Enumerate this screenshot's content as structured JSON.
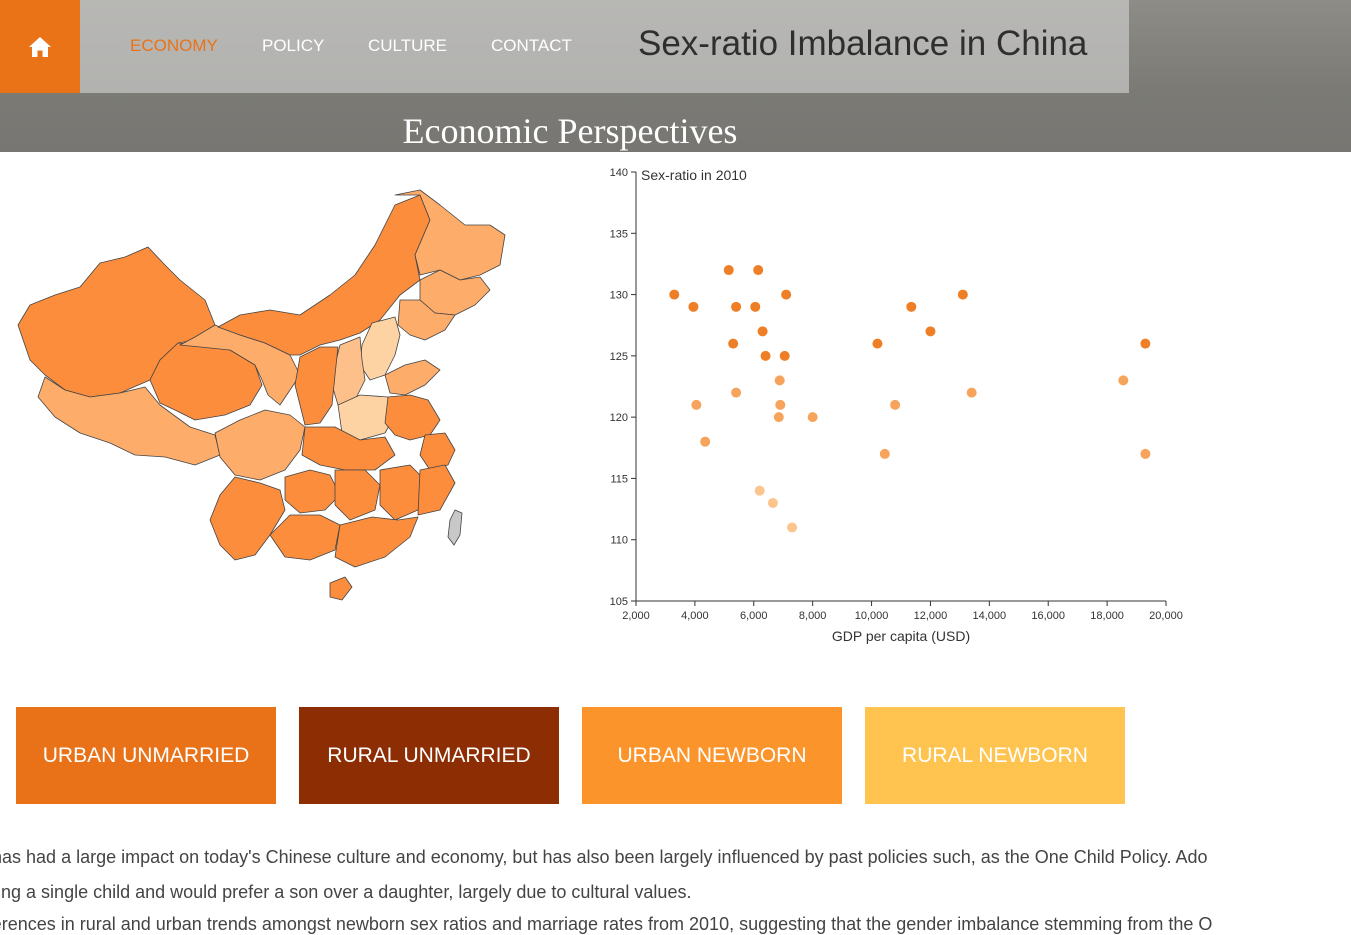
{
  "nav": {
    "home_icon": "home-icon",
    "items": [
      "ECONOMY",
      "POLICY",
      "CULTURE",
      "CONTACT"
    ],
    "active": "ECONOMY",
    "site_title": "Sex-ratio Imbalance in China"
  },
  "section_title": "Economic Perspectives",
  "map": {
    "description_color_high": "#f0822a",
    "description_color_low": "#fdd3a4",
    "taiwan_color": "#c8c8c8"
  },
  "chart_data": {
    "type": "scatter",
    "title": "Sex-ratio in 2010",
    "xlabel": "GDP per capita (USD)",
    "ylabel": "",
    "xlim": [
      2000,
      20000
    ],
    "ylim": [
      105,
      140
    ],
    "xticks": [
      "2,000",
      "4,000",
      "6,000",
      "8,000",
      "10,000",
      "12,000",
      "14,000",
      "16,000",
      "18,000",
      "20,000"
    ],
    "yticks": [
      "105",
      "110",
      "115",
      "120",
      "125",
      "130",
      "135",
      "140"
    ],
    "grid": false,
    "colors": {
      "dark": "#ef7f26",
      "mid": "#f6a45c",
      "light": "#fcc58e"
    },
    "points": [
      {
        "x": 3300,
        "y": 130,
        "tone": "dark"
      },
      {
        "x": 3950,
        "y": 129,
        "tone": "dark"
      },
      {
        "x": 4050,
        "y": 121,
        "tone": "mid"
      },
      {
        "x": 4350,
        "y": 118,
        "tone": "mid"
      },
      {
        "x": 5150,
        "y": 132,
        "tone": "dark"
      },
      {
        "x": 5300,
        "y": 126,
        "tone": "dark"
      },
      {
        "x": 5400,
        "y": 129,
        "tone": "dark"
      },
      {
        "x": 5400,
        "y": 122,
        "tone": "mid"
      },
      {
        "x": 6050,
        "y": 129,
        "tone": "dark"
      },
      {
        "x": 6150,
        "y": 132,
        "tone": "dark"
      },
      {
        "x": 6200,
        "y": 114,
        "tone": "light"
      },
      {
        "x": 6300,
        "y": 127,
        "tone": "dark"
      },
      {
        "x": 6400,
        "y": 125,
        "tone": "dark"
      },
      {
        "x": 6650,
        "y": 113,
        "tone": "light"
      },
      {
        "x": 6850,
        "y": 120,
        "tone": "mid"
      },
      {
        "x": 6880,
        "y": 123,
        "tone": "mid"
      },
      {
        "x": 6900,
        "y": 121,
        "tone": "mid"
      },
      {
        "x": 7050,
        "y": 125,
        "tone": "dark"
      },
      {
        "x": 7100,
        "y": 130,
        "tone": "dark"
      },
      {
        "x": 7300,
        "y": 111,
        "tone": "light"
      },
      {
        "x": 8000,
        "y": 120,
        "tone": "mid"
      },
      {
        "x": 10200,
        "y": 126,
        "tone": "dark"
      },
      {
        "x": 10450,
        "y": 117,
        "tone": "mid"
      },
      {
        "x": 10800,
        "y": 121,
        "tone": "mid"
      },
      {
        "x": 11350,
        "y": 129,
        "tone": "dark"
      },
      {
        "x": 12000,
        "y": 127,
        "tone": "dark"
      },
      {
        "x": 13100,
        "y": 130,
        "tone": "dark"
      },
      {
        "x": 13400,
        "y": 122,
        "tone": "mid"
      },
      {
        "x": 18550,
        "y": 123,
        "tone": "mid"
      },
      {
        "x": 19300,
        "y": 126,
        "tone": "dark"
      },
      {
        "x": 19300,
        "y": 117,
        "tone": "mid"
      }
    ]
  },
  "buttons": [
    {
      "label": "URBAN UNMARRIED",
      "color": "#e97218"
    },
    {
      "label": "RURAL UNMARRIED",
      "color": "#8c2d04"
    },
    {
      "label": "URBAN NEWBORN",
      "color": "#fb952b"
    },
    {
      "label": "RURAL NEWBORN",
      "color": "#fec44f"
    }
  ],
  "paragraphs": [
    "ce has had a large impact on today's Chinese culture and economy, but has also been largely influenced by past policies such, as the One Child Policy. Ado",
    "having a single child and would prefer a son over a daughter, largely due to cultural values.",
    "differences in rural and urban trends amongst newborn sex ratios and marriage rates from 2010, suggesting that the gender imbalance stemming from the O"
  ]
}
